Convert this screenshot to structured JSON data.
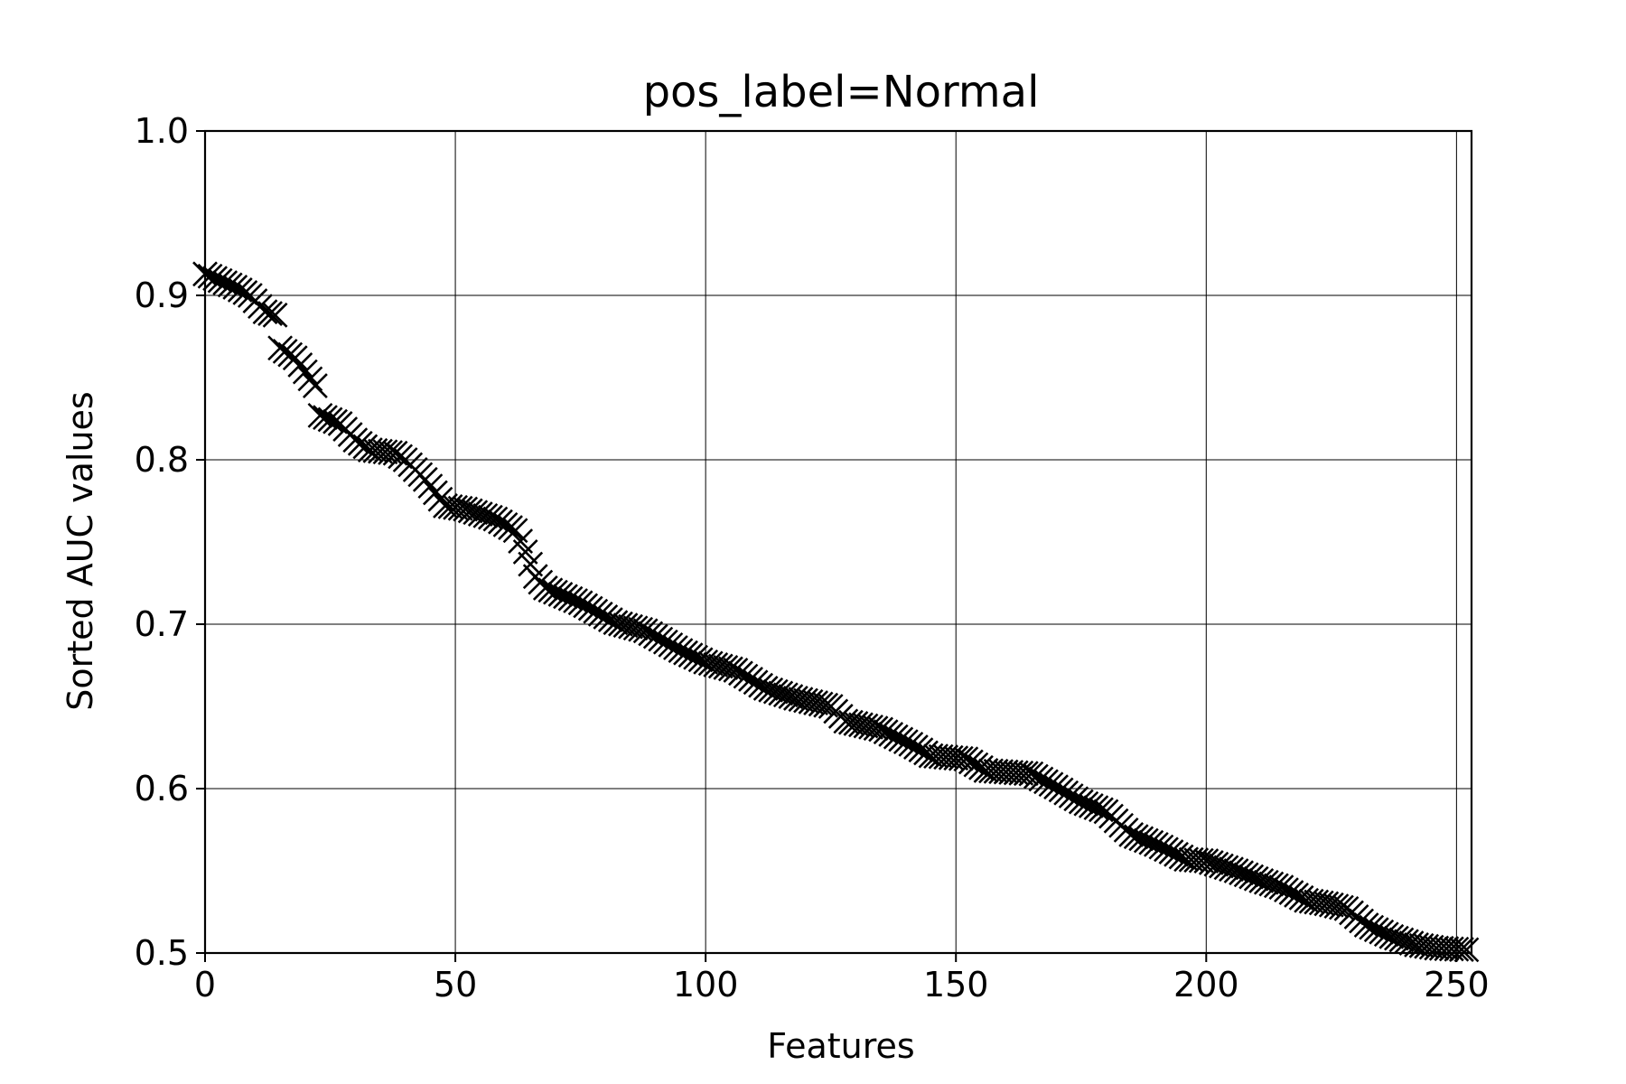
{
  "chart_data": {
    "type": "scatter",
    "title": "pos_label=Normal",
    "xlabel": "Features",
    "ylabel": "Sorted AUC values",
    "xlim": [
      0,
      253
    ],
    "ylim": [
      0.5,
      1.0
    ],
    "grid": true,
    "marker": "x",
    "color": "#000000",
    "xticks": [
      0,
      50,
      100,
      150,
      200,
      250
    ],
    "xtick_labels": [
      "0",
      "50",
      "100",
      "150",
      "200",
      "250"
    ],
    "yticks": [
      0.5,
      0.6,
      0.7,
      0.8,
      0.9,
      1.0
    ],
    "ytick_labels": [
      "0.5",
      "0.6",
      "0.7",
      "0.8",
      "0.9",
      "1.0"
    ],
    "series": [
      {
        "knots": [
          [
            0,
            0.913
          ],
          [
            6,
            0.905
          ],
          [
            9,
            0.9
          ],
          [
            12,
            0.89
          ],
          [
            14,
            0.888
          ],
          [
            15,
            0.868
          ],
          [
            18,
            0.862
          ],
          [
            22,
            0.845
          ],
          [
            23,
            0.827
          ],
          [
            27,
            0.822
          ],
          [
            30,
            0.812
          ],
          [
            33,
            0.806
          ],
          [
            38,
            0.804
          ],
          [
            40,
            0.8
          ],
          [
            44,
            0.788
          ],
          [
            48,
            0.772
          ],
          [
            52,
            0.77
          ],
          [
            58,
            0.764
          ],
          [
            62,
            0.757
          ],
          [
            64,
            0.744
          ],
          [
            66,
            0.729
          ],
          [
            68,
            0.722
          ],
          [
            75,
            0.713
          ],
          [
            82,
            0.701
          ],
          [
            88,
            0.696
          ],
          [
            95,
            0.684
          ],
          [
            100,
            0.677
          ],
          [
            106,
            0.672
          ],
          [
            112,
            0.661
          ],
          [
            118,
            0.655
          ],
          [
            125,
            0.65
          ],
          [
            128,
            0.641
          ],
          [
            135,
            0.636
          ],
          [
            141,
            0.627
          ],
          [
            145,
            0.62
          ],
          [
            152,
            0.618
          ],
          [
            156,
            0.611
          ],
          [
            165,
            0.609
          ],
          [
            170,
            0.601
          ],
          [
            175,
            0.592
          ],
          [
            180,
            0.586
          ],
          [
            185,
            0.572
          ],
          [
            190,
            0.566
          ],
          [
            196,
            0.557
          ],
          [
            200,
            0.556
          ],
          [
            206,
            0.55
          ],
          [
            211,
            0.544
          ],
          [
            215,
            0.54
          ],
          [
            220,
            0.532
          ],
          [
            224,
            0.53
          ],
          [
            228,
            0.527
          ],
          [
            232,
            0.517
          ],
          [
            237,
            0.51
          ],
          [
            242,
            0.505
          ],
          [
            246,
            0.503
          ],
          [
            252,
            0.502
          ]
        ]
      }
    ]
  }
}
